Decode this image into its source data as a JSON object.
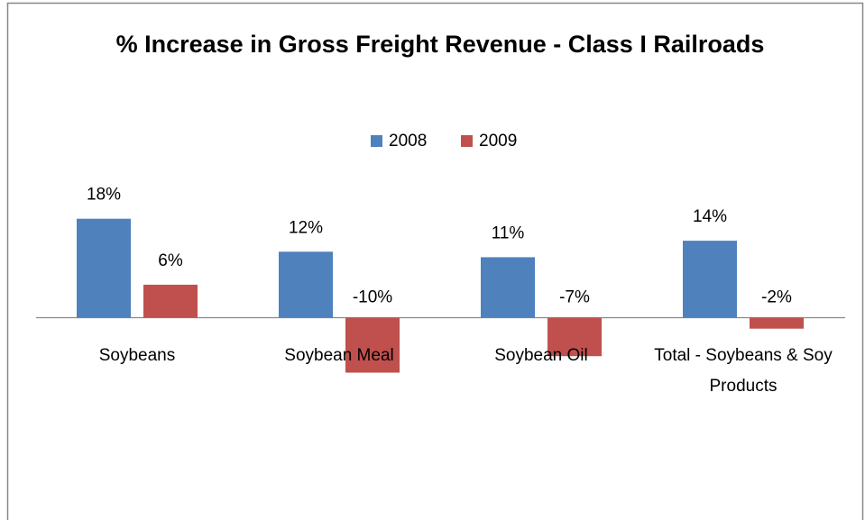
{
  "chart_data": {
    "type": "bar",
    "title": "% Increase in Gross Freight Revenue - Class I Railroads",
    "categories": [
      "Soybeans",
      "Soybean Meal",
      "Soybean Oil",
      "Total - Soybeans & Soy Products"
    ],
    "series": [
      {
        "name": "2008",
        "color": "#4f81bd",
        "values": [
          18,
          12,
          11,
          14
        ],
        "value_labels": [
          "18%",
          "12%",
          "11%",
          "14%"
        ]
      },
      {
        "name": "2009",
        "color": "#c0504d",
        "values": [
          6,
          -10,
          -7,
          -2
        ],
        "value_labels": [
          "6%",
          "-10%",
          "-7%",
          "-2%"
        ]
      }
    ],
    "legend": "top"
  }
}
